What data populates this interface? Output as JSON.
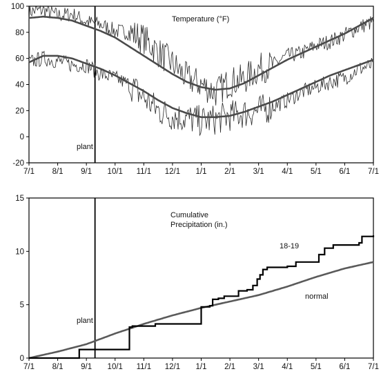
{
  "colors": {
    "daily": "#2a2a2a",
    "normal_temp": "#4a4a4a",
    "season": "#000000",
    "normal_precip": "#5a5a5a"
  },
  "chart_data": [
    {
      "type": "line",
      "title": "Temperature (°F)",
      "xlabel": "",
      "ylabel": "",
      "x_ticks": [
        "7/1",
        "8/1",
        "9/1",
        "10/1",
        "11/1",
        "12/1",
        "1/1",
        "2/1",
        "3/1",
        "4/1",
        "5/1",
        "6/1",
        "7/1"
      ],
      "y_ticks": [
        "-20",
        "0",
        "20",
        "40",
        "60",
        "80",
        "100"
      ],
      "ylim": [
        -20,
        100
      ],
      "x_unit": "months since 7/1",
      "grid": false,
      "annotations": [
        {
          "text": "plant",
          "x": 2.3
        }
      ],
      "series": [
        {
          "role": "daily-high",
          "x": [
            0,
            0.5,
            1,
            1.5,
            2,
            2.5,
            3,
            3.5,
            4,
            4.5,
            5,
            5.5,
            6,
            6.5,
            7,
            7.5,
            8,
            8.5,
            9,
            9.5,
            10,
            10.5,
            11,
            11.5,
            12
          ],
          "values": [
            96,
            97,
            93,
            94,
            88,
            86,
            81,
            80,
            75,
            65,
            56,
            45,
            40,
            34,
            42,
            44,
            52,
            55,
            62,
            64,
            70,
            73,
            78,
            84,
            88
          ]
        },
        {
          "role": "daily-low",
          "x": [
            0,
            0.5,
            1,
            1.5,
            2,
            2.5,
            3,
            3.5,
            4,
            4.5,
            5,
            5.5,
            6,
            6.5,
            7,
            7.5,
            8,
            8.5,
            9,
            9.5,
            10,
            10.5,
            11,
            11.5,
            12
          ],
          "values": [
            57,
            60,
            58,
            55,
            55,
            48,
            45,
            40,
            30,
            20,
            16,
            14,
            12,
            13,
            16,
            18,
            20,
            23,
            28,
            34,
            38,
            42,
            45,
            52,
            55
          ]
        },
        {
          "role": "normal-high",
          "x": [
            0,
            0.5,
            1,
            1.5,
            2,
            2.5,
            3,
            3.5,
            4,
            4.5,
            5,
            5.5,
            6,
            6.5,
            7,
            7.5,
            8,
            8.5,
            9,
            9.5,
            10,
            10.5,
            11,
            11.5,
            12
          ],
          "values": [
            91,
            92,
            91,
            89,
            85,
            81,
            76,
            69,
            62,
            55,
            48,
            42,
            38,
            36,
            37,
            41,
            47,
            53,
            59,
            64,
            69,
            74,
            79,
            85,
            91
          ]
        },
        {
          "role": "normal-low",
          "x": [
            0,
            0.5,
            1,
            1.5,
            2,
            2.5,
            3,
            3.5,
            4,
            4.5,
            5,
            5.5,
            6,
            6.5,
            7,
            7.5,
            8,
            8.5,
            9,
            9.5,
            10,
            10.5,
            11,
            11.5,
            12
          ],
          "values": [
            57,
            62,
            62,
            60,
            56,
            52,
            47,
            41,
            35,
            28,
            22,
            18,
            15,
            15,
            16,
            19,
            23,
            27,
            32,
            37,
            42,
            47,
            51,
            55,
            59
          ]
        }
      ]
    },
    {
      "type": "line",
      "title": "Cumulative\nPrecipitation (in.)",
      "xlabel": "",
      "ylabel": "",
      "x_ticks": [
        "7/1",
        "8/1",
        "9/1",
        "10/1",
        "11/1",
        "12/1",
        "1/1",
        "2/1",
        "3/1",
        "4/1",
        "5/1",
        "6/1",
        "7/1"
      ],
      "y_ticks": [
        "0",
        "5",
        "10",
        "15"
      ],
      "ylim": [
        0,
        15
      ],
      "x_unit": "months since 7/1",
      "grid": false,
      "annotations": [
        {
          "text": "plant",
          "x": 2.3
        }
      ],
      "series": [
        {
          "name": "18-19",
          "step": true,
          "x": [
            0,
            1.7,
            1.75,
            3.35,
            3.5,
            3.6,
            4.3,
            4.4,
            5.9,
            6,
            6.3,
            6.4,
            6.6,
            6.8,
            7.3,
            7.6,
            7.8,
            7.95,
            8.05,
            8.15,
            8.3,
            9,
            9.3,
            10.1,
            10.3,
            10.6,
            11.5,
            11.6,
            12
          ],
          "values": [
            0,
            0,
            0.8,
            0.8,
            2.9,
            3,
            3,
            3.2,
            3.2,
            4.8,
            4.9,
            5.5,
            5.6,
            5.8,
            6.3,
            6.4,
            6.8,
            7.4,
            7.8,
            8.3,
            8.5,
            8.6,
            9,
            9.7,
            10.3,
            10.6,
            10.8,
            11.4,
            11.5
          ]
        },
        {
          "name": "normal",
          "x": [
            0,
            1,
            2,
            3,
            4,
            5,
            6,
            7,
            8,
            9,
            10,
            11,
            12
          ],
          "values": [
            0,
            0.6,
            1.3,
            2.3,
            3.2,
            4,
            4.7,
            5.3,
            5.9,
            6.7,
            7.6,
            8.4,
            9
          ]
        }
      ]
    }
  ]
}
